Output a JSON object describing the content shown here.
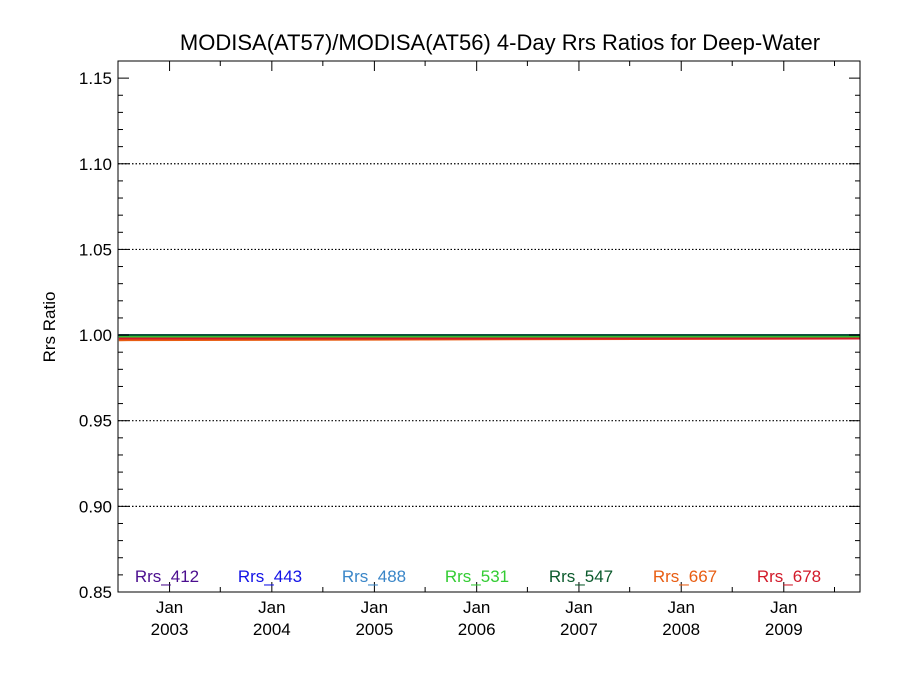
{
  "chart_data": {
    "type": "line",
    "title": "MODISA(AT57)/MODISA(AT56) 4-Day Rrs Ratios for Deep-Water",
    "ylabel": "Rrs Ratio",
    "xlabel": "",
    "ylim": [
      0.85,
      1.16
    ],
    "yticks": [
      0.85,
      0.9,
      0.95,
      1.0,
      1.05,
      1.1,
      1.15
    ],
    "ytick_labels": [
      "0.85",
      "0.90",
      "0.95",
      "1.00",
      "1.05",
      "1.10",
      "1.15"
    ],
    "xlim": [
      "2002-07-01",
      "2009-09-30"
    ],
    "xticks": [
      {
        "date": "2003-01-01",
        "month": "Jan",
        "year": "2003"
      },
      {
        "date": "2004-01-01",
        "month": "Jan",
        "year": "2004"
      },
      {
        "date": "2005-01-01",
        "month": "Jan",
        "year": "2005"
      },
      {
        "date": "2006-01-01",
        "month": "Jan",
        "year": "2006"
      },
      {
        "date": "2007-01-01",
        "month": "Jan",
        "year": "2007"
      },
      {
        "date": "2008-01-01",
        "month": "Jan",
        "year": "2008"
      },
      {
        "date": "2009-01-01",
        "month": "Jan",
        "year": "2009"
      }
    ],
    "grid": "horizontal dotted at major ticks",
    "legend": "bottom row inside plot",
    "series": [
      {
        "name": "Rrs_412",
        "color": "#4b0e8f",
        "x": [
          "2002-07-04",
          "2009-09-30"
        ],
        "y": [
          1.0,
          1.0
        ]
      },
      {
        "name": "Rrs_443",
        "color": "#1212e6",
        "x": [
          "2002-07-04",
          "2009-09-30"
        ],
        "y": [
          1.0,
          1.0
        ]
      },
      {
        "name": "Rrs_488",
        "color": "#3a86c8",
        "x": [
          "2002-07-04",
          "2009-09-30"
        ],
        "y": [
          0.999,
          0.999
        ]
      },
      {
        "name": "Rrs_531",
        "color": "#33cc33",
        "x": [
          "2002-07-04",
          "2009-09-30"
        ],
        "y": [
          0.999,
          0.999
        ]
      },
      {
        "name": "Rrs_547",
        "color": "#0b5a2c",
        "x": [
          "2002-07-04",
          "2009-09-30"
        ],
        "y": [
          1.0,
          1.0
        ]
      },
      {
        "name": "Rrs_667",
        "color": "#e85d12",
        "x": [
          "2002-07-04",
          "2009-09-30"
        ],
        "y": [
          0.997,
          0.998
        ]
      },
      {
        "name": "Rrs_678",
        "color": "#d21a2a",
        "x": [
          "2002-07-04",
          "2009-09-30"
        ],
        "y": [
          0.998,
          0.998
        ]
      }
    ]
  }
}
